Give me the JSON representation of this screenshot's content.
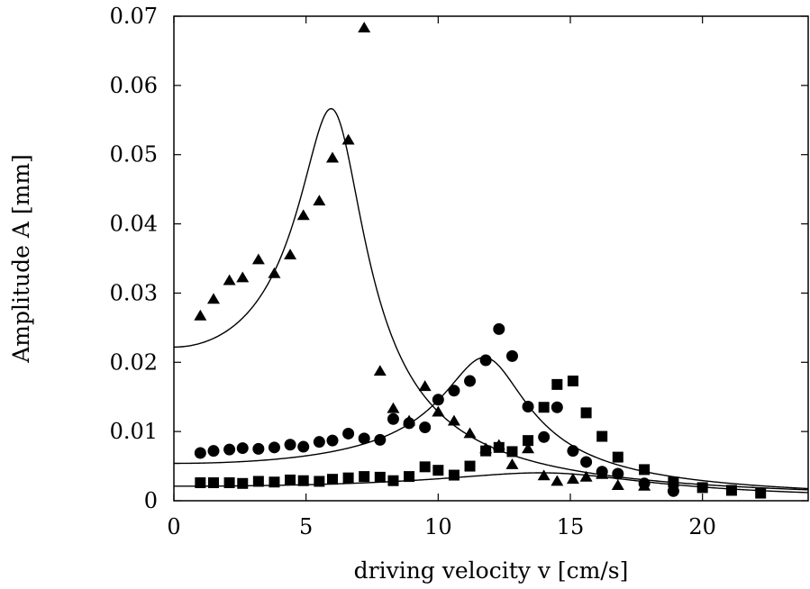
{
  "chart_data": {
    "type": "scatter",
    "title": "",
    "xlabel": "driving velocity v [cm/s]",
    "ylabel": "Amplitude A [mm]",
    "xlim": [
      0,
      24
    ],
    "ylim": [
      0,
      0.07
    ],
    "xticks": [
      0,
      5,
      10,
      15,
      20
    ],
    "yticks": [
      0,
      0.01,
      0.02,
      0.03,
      0.04,
      0.05,
      0.06,
      0.07
    ],
    "xtick_labels": [
      "0",
      "5",
      "10",
      "15",
      "20"
    ],
    "ytick_labels": [
      "0",
      "0.01",
      "0.02",
      "0.03",
      "0.04",
      "0.05",
      "0.06",
      "0.07"
    ],
    "grid": false,
    "legend": "none",
    "series": [
      {
        "marker": "triangle",
        "x": [
          1.0,
          1.5,
          2.1,
          2.6,
          3.2,
          3.8,
          4.4,
          4.9,
          5.5,
          6.0,
          6.6,
          7.2,
          7.8,
          8.3,
          8.9,
          9.5,
          10.0,
          10.6,
          11.2,
          11.8,
          12.3,
          12.8,
          13.4,
          14.0,
          14.5,
          15.1,
          15.6,
          16.2,
          16.8,
          17.8
        ],
        "y": [
          0.0267,
          0.0291,
          0.0318,
          0.0322,
          0.0348,
          0.0328,
          0.0355,
          0.0412,
          0.0433,
          0.0495,
          0.0521,
          0.0683,
          0.0187,
          0.0133,
          0.0115,
          0.0165,
          0.0128,
          0.0115,
          0.0097,
          0.0075,
          0.008,
          0.0052,
          0.0075,
          0.0036,
          0.0028,
          0.0031,
          0.0034,
          0.0038,
          0.0022,
          0.0021
        ]
      },
      {
        "marker": "circle",
        "x": [
          1.0,
          1.5,
          2.1,
          2.6,
          3.2,
          3.8,
          4.4,
          4.9,
          5.5,
          6.0,
          6.6,
          7.2,
          7.8,
          8.3,
          8.9,
          9.5,
          10.0,
          10.6,
          11.2,
          11.8,
          12.3,
          12.8,
          13.4,
          14.0,
          14.5,
          15.1,
          15.6,
          16.2,
          16.8,
          17.8,
          18.9
        ],
        "y": [
          0.0069,
          0.0072,
          0.0074,
          0.0076,
          0.0075,
          0.0077,
          0.0081,
          0.0078,
          0.0085,
          0.0087,
          0.0097,
          0.009,
          0.0088,
          0.0118,
          0.0112,
          0.0106,
          0.0146,
          0.0159,
          0.0173,
          0.0203,
          0.0248,
          0.0209,
          0.0136,
          0.0092,
          0.0135,
          0.0072,
          0.0056,
          0.0042,
          0.0039,
          0.0025,
          0.0014
        ]
      },
      {
        "marker": "square",
        "x": [
          1.0,
          1.5,
          2.1,
          2.6,
          3.2,
          3.8,
          4.4,
          4.9,
          5.5,
          6.0,
          6.6,
          7.2,
          7.8,
          8.3,
          8.9,
          9.5,
          10.0,
          10.6,
          11.2,
          11.8,
          12.3,
          12.8,
          13.4,
          14.0,
          14.5,
          15.1,
          15.6,
          16.2,
          16.8,
          17.8,
          18.9,
          20.0,
          21.1,
          22.2
        ],
        "y": [
          0.0026,
          0.0026,
          0.0026,
          0.0025,
          0.0028,
          0.0027,
          0.003,
          0.0029,
          0.0028,
          0.0031,
          0.0033,
          0.0035,
          0.0034,
          0.0029,
          0.0035,
          0.0049,
          0.0044,
          0.0037,
          0.005,
          0.0072,
          0.0077,
          0.0071,
          0.0087,
          0.0135,
          0.0168,
          0.0173,
          0.0127,
          0.0093,
          0.0063,
          0.0045,
          0.0027,
          0.0019,
          0.0015,
          0.0011
        ]
      }
    ],
    "fits": [
      {
        "a0": 0.0222,
        "v0": 6.2,
        "g": 2.5
      },
      {
        "a0": 0.0054,
        "v0": 11.95,
        "g": 3.8
      },
      {
        "a0": 0.0021,
        "v0": 15.0,
        "g": 1.85
      }
    ]
  }
}
